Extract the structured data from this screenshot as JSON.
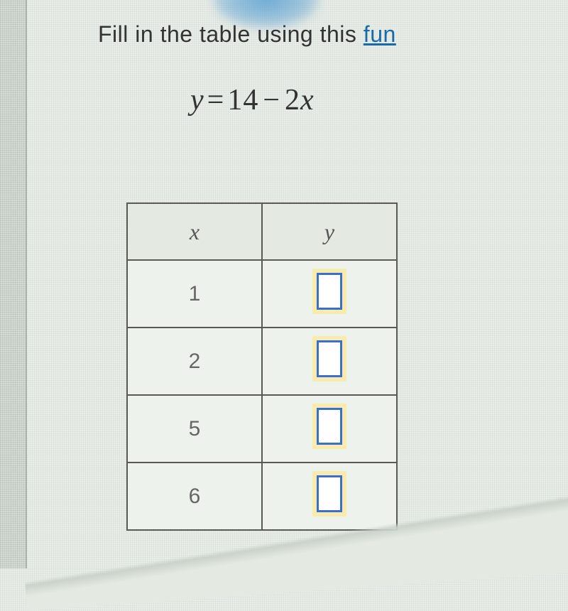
{
  "instruction": {
    "prefix": "Fill in the table using this ",
    "link_text": "fun"
  },
  "equation": {
    "lhs": "y",
    "eq": "=",
    "c": "14",
    "op": "−",
    "coef": "2",
    "var": "x"
  },
  "table": {
    "headers": {
      "x": "x",
      "y": "y"
    },
    "rows": [
      {
        "x": "1",
        "y": ""
      },
      {
        "x": "2",
        "y": ""
      },
      {
        "x": "5",
        "y": ""
      },
      {
        "x": "6",
        "y": ""
      }
    ]
  },
  "colors": {
    "background": "#e8ede8",
    "text": "#333",
    "link": "#1a6aa8",
    "table_border": "#5a5a55",
    "header_bg": "#e4e9e2",
    "cell_bg": "#eef2ed",
    "input_border": "#3a6fcf",
    "input_glow": "rgba(255,230,120,0.55)"
  }
}
